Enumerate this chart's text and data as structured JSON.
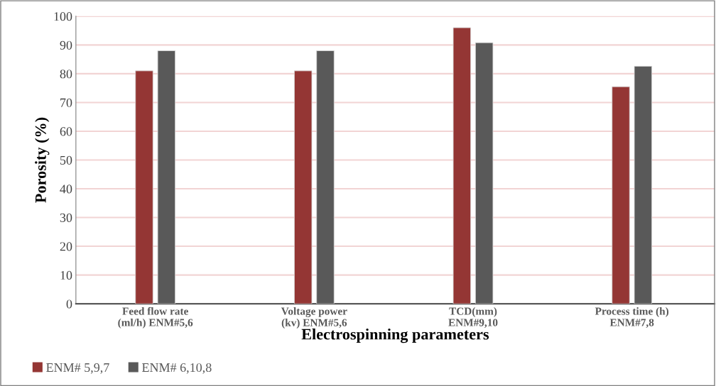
{
  "chart_data": {
    "type": "bar",
    "xlabel": "Electrospinning parameters",
    "ylabel": "Porosity (%)",
    "categories": [
      "Feed flow rate\n(ml/h) ENM#5,6",
      "Voltage power\n(kv) ENM#5,6",
      "TCD(mm)\nENM#9,10",
      "Process time (h)\nENM#7,8"
    ],
    "series": [
      {
        "name": "ENM# 5,9,7",
        "color": "#943634",
        "values": [
          81,
          81,
          96,
          75.5
        ]
      },
      {
        "name": "ENM# 6,10,8",
        "color": "#595959",
        "values": [
          88,
          88,
          90.8,
          82.6
        ]
      }
    ],
    "ylim": [
      0,
      100
    ],
    "yticks": [
      0,
      10,
      20,
      30,
      40,
      50,
      60,
      70,
      80,
      90,
      100
    ],
    "grid": "y",
    "legend": "bottom left"
  }
}
